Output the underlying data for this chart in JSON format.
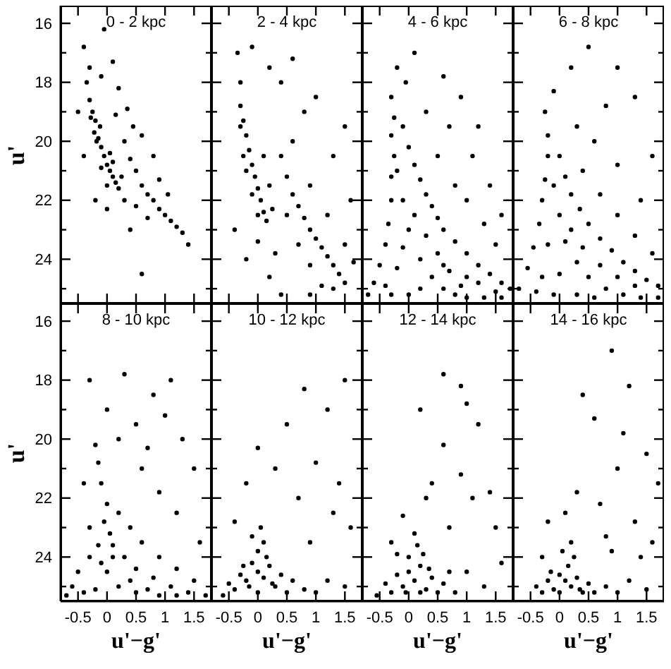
{
  "chart_data": [
    {
      "type": "scatter",
      "title": "0 - 2 kpc",
      "ylabel": "u'",
      "tick_labels": "y",
      "marker": "circle",
      "xlim": [
        -0.8,
        1.8
      ],
      "ylim": [
        25.5,
        15.4
      ],
      "xticks": [
        -0.5,
        0,
        0.5,
        1,
        1.5
      ],
      "yticks": [
        16,
        {
          "value": 17,
          "label": null
        },
        18,
        {
          "value": 19,
          "label": null
        },
        20,
        {
          "value": 21,
          "label": null
        },
        22,
        {
          "value": 23,
          "label": null
        },
        24,
        {
          "value": 25,
          "label": null
        }
      ],
      "series": [
        {
          "color": "#000000",
          "x": [
            -0.3,
            -0.25,
            -0.2,
            -0.22,
            -0.15,
            -0.1,
            -0.18,
            -0.05,
            0,
            0.05,
            0.1,
            0.15,
            0.2,
            -0.1,
            0,
            -0.28,
            -0.12,
            0.05,
            0.1,
            0.25,
            0.3,
            0.4,
            0.5,
            0.6,
            0.7,
            0.8,
            0.9,
            1,
            1.1,
            1.2,
            1.3,
            0.45,
            0.6,
            0.3,
            0.5,
            0.7,
            0.2,
            -0.1,
            -0.3,
            0.1,
            -0.4,
            -0.35,
            0.9,
            1.05,
            -0.2,
            0,
            0.4,
            -0.5,
            0.6,
            0.35,
            0.8,
            1.4,
            -0.05,
            0.15,
            -0.4
          ],
          "values": [
            18.6,
            19,
            19.3,
            19.7,
            19.9,
            20.2,
            20,
            20.5,
            20.8,
            21,
            21.2,
            21.4,
            21.6,
            20.9,
            21.5,
            19.2,
            19.5,
            20.4,
            20.7,
            21.2,
            20,
            20.6,
            21,
            21.5,
            21.8,
            22,
            22.3,
            22.5,
            22.7,
            22.9,
            23.1,
            19.5,
            19.8,
            22,
            22.2,
            22.6,
            18.2,
            17.8,
            17.5,
            17.3,
            16.8,
            18,
            21.3,
            21.8,
            22,
            22.3,
            23,
            19,
            24.5,
            18.9,
            20.5,
            23.5,
            16.2,
            19.1,
            20.5
          ]
        }
      ]
    },
    {
      "type": "scatter",
      "title": "2 - 4 kpc",
      "tick_labels": false,
      "marker": "circle",
      "xlim": [
        -0.8,
        1.8
      ],
      "ylim": [
        25.5,
        15.4
      ],
      "xticks": [
        -0.5,
        0,
        0.5,
        1,
        1.5
      ],
      "yticks": [
        16,
        {
          "value": 17,
          "label": null
        },
        18,
        {
          "value": 19,
          "label": null
        },
        20,
        {
          "value": 21,
          "label": null
        },
        22,
        {
          "value": 23,
          "label": null
        },
        24,
        {
          "value": 25,
          "label": null
        }
      ],
      "series": [
        {
          "color": "#000000",
          "x": [
            -0.35,
            -0.3,
            -0.3,
            -0.25,
            -0.2,
            -0.15,
            -0.1,
            -0.05,
            0,
            0.05,
            0.1,
            0.15,
            -0.2,
            -0.1,
            0,
            -0.25,
            0.2,
            0.25,
            -0.3,
            0.1,
            0.4,
            0.5,
            0.6,
            0.7,
            0.8,
            0.9,
            1,
            1.1,
            1.2,
            1.3,
            1.4,
            1.5,
            0.5,
            0.7,
            0.3,
            0.9,
            1.1,
            0.2,
            -0.2,
            0,
            0.6,
            0.9,
            1.2,
            1.5,
            1.6,
            0.8,
            0.4,
            1,
            1.3,
            0.2,
            -0.1,
            0.6,
            1.5,
            1.65,
            -0.4,
            0.4,
            0.9,
            1.3
          ],
          "values": [
            17,
            18,
            18.8,
            19.3,
            19.8,
            20.3,
            20.8,
            21.2,
            21.6,
            22,
            22.4,
            22.7,
            21,
            21.8,
            22.5,
            20.5,
            21.5,
            22.3,
            19.5,
            20.5,
            20.5,
            21.2,
            21.8,
            22.2,
            22.6,
            23,
            23.3,
            23.6,
            23.9,
            24.2,
            24.5,
            24.8,
            22.5,
            23.5,
            23.8,
            24.2,
            24.9,
            24.6,
            24,
            23.4,
            20,
            21.5,
            22.5,
            23.5,
            22,
            19,
            18,
            18.5,
            20.5,
            17.5,
            16.8,
            17.2,
            19.5,
            24.1,
            23,
            25.2,
            25.2,
            25
          ]
        }
      ]
    },
    {
      "type": "scatter",
      "title": "4 - 6 kpc",
      "tick_labels": false,
      "marker": "circle",
      "xlim": [
        -0.8,
        1.8
      ],
      "ylim": [
        25.5,
        15.4
      ],
      "xticks": [
        -0.5,
        0,
        0.5,
        1,
        1.5
      ],
      "yticks": [
        16,
        {
          "value": 17,
          "label": null
        },
        18,
        {
          "value": 19,
          "label": null
        },
        20,
        {
          "value": 21,
          "label": null
        },
        22,
        {
          "value": 23,
          "label": null
        },
        24,
        {
          "value": 25,
          "label": null
        }
      ],
      "series": [
        {
          "color": "#000000",
          "x": [
            -0.3,
            -0.25,
            -0.3,
            -0.25,
            -0.3,
            -0.3,
            -0.35,
            -0.4,
            -0.5,
            -0.6,
            -0.7,
            -0.1,
            0,
            0.1,
            0.2,
            0.3,
            0.4,
            0.5,
            0.6,
            0.8,
            1,
            1.2,
            1.4,
            1.6,
            1.75,
            -0.2,
            -0.1,
            0,
            0.2,
            0.4,
            0.6,
            0.8,
            1,
            1.3,
            1.6,
            0,
            -0.3,
            -0.2,
            0.1,
            0.3,
            0.5,
            0.7,
            1,
            -0.1,
            0.2,
            0.6,
            0.9,
            1.2,
            1.5,
            -0.4,
            0.5,
            0.8,
            1,
            1.3,
            1.5,
            0.7,
            1.1,
            1.4,
            0.3,
            0.9,
            -0.2,
            0.1,
            0.6,
            1.2,
            1.6,
            -0.05
          ],
          "values": [
            18.5,
            19.2,
            19.8,
            20.5,
            21.2,
            22,
            22.8,
            23.5,
            24.2,
            24.8,
            25.2,
            19.5,
            20.2,
            20.8,
            21.3,
            21.8,
            22.2,
            22.6,
            23,
            23.4,
            23.8,
            24.2,
            24.5,
            24.8,
            25,
            21,
            22,
            23,
            24,
            24.6,
            25,
            25.2,
            25.3,
            25.3,
            25.3,
            25.2,
            25.2,
            24.3,
            22.5,
            23.2,
            23.8,
            24.4,
            24.6,
            23.6,
            25,
            24.2,
            24.9,
            24.8,
            25.1,
            24.9,
            20.5,
            21.5,
            22,
            22.8,
            23.5,
            19.5,
            20.5,
            21.5,
            19,
            18.5,
            17.5,
            17,
            17.8,
            19.5,
            22.5,
            18
          ]
        }
      ]
    },
    {
      "type": "scatter",
      "title": "6 - 8 kpc",
      "tick_labels": false,
      "marker": "circle",
      "xlim": [
        -0.8,
        1.8
      ],
      "ylim": [
        25.5,
        15.4
      ],
      "xticks": [
        -0.5,
        0,
        0.5,
        1,
        1.5
      ],
      "yticks": [
        16,
        {
          "value": 17,
          "label": null
        },
        18,
        {
          "value": 19,
          "label": null
        },
        20,
        {
          "value": 21,
          "label": null
        },
        22,
        {
          "value": 23,
          "label": null
        },
        24,
        {
          "value": 25,
          "label": null
        }
      ],
      "series": [
        {
          "color": "#000000",
          "x": [
            -0.25,
            -0.2,
            -0.2,
            -0.25,
            -0.3,
            -0.35,
            -0.45,
            -0.55,
            -0.7,
            0,
            0.1,
            0.2,
            0.35,
            0.5,
            0.7,
            0.9,
            1.1,
            1.3,
            1.5,
            1.7,
            -0.1,
            0,
            0.1,
            0.3,
            0.5,
            0.8,
            1.1,
            1.4,
            1.7,
            -0.2,
            0,
            -0.1,
            0.3,
            0.6,
            -0.4,
            0.2,
            0.4,
            0.7,
            1,
            1.3,
            -0.3,
            0.4,
            0.7,
            1,
            1.3,
            1.6,
            0.6,
            1,
            1.4,
            0.3,
            0.8,
            1.3,
            -0.1,
            0.2,
            1.6,
            1,
            0.5
          ],
          "values": [
            19,
            19.8,
            20.5,
            21.3,
            22,
            22.8,
            23.6,
            24.3,
            25,
            20.5,
            21.2,
            21.8,
            22.3,
            22.8,
            23.3,
            23.7,
            24.1,
            24.4,
            24.7,
            24.9,
            21.5,
            22.5,
            23.4,
            24.1,
            24.6,
            25,
            25.2,
            25.3,
            25.3,
            23.5,
            24.5,
            25.2,
            25.2,
            25.3,
            25.1,
            23,
            23.6,
            24.2,
            24.6,
            24.9,
            24.6,
            21,
            21.8,
            22.5,
            23.2,
            23.8,
            20,
            20.8,
            22,
            19.5,
            18.8,
            18.5,
            18.3,
            17.5,
            20.5,
            17.5,
            16.8
          ]
        }
      ]
    },
    {
      "type": "scatter",
      "title": "8 - 10 kpc",
      "xlabel": "u'−g'",
      "ylabel": "u'",
      "marker": "circle",
      "xlim": [
        -0.8,
        1.8
      ],
      "ylim": [
        25.5,
        15.4
      ],
      "xticks": [
        -0.5,
        0,
        0.5,
        1,
        1.5
      ],
      "yticks": [
        16,
        {
          "value": 17,
          "label": null
        },
        18,
        {
          "value": 19,
          "label": null
        },
        20,
        {
          "value": 21,
          "label": null
        },
        22,
        {
          "value": 23,
          "label": null
        },
        24,
        {
          "value": 25,
          "label": null
        }
      ],
      "series": [
        {
          "color": "#000000",
          "x": [
            0,
            -0.05,
            0.05,
            -0.15,
            0.1,
            -0.3,
            0.3,
            -0.5,
            0.5,
            -0.6,
            0.8,
            1.1,
            1.4,
            1.7,
            -0.7,
            0,
            0.2,
            -0.2,
            0.5,
            0.9,
            -0.4,
            0.1,
            -0.1,
            0.4,
            0.7,
            1.2,
            -0.1,
            -0.15,
            -0.2,
            0.2,
            0.4,
            0.6,
            0.9,
            1.2,
            1.5,
            -0.3,
            0.6,
            0.9,
            1.2,
            0.5,
            0.8,
            1,
            1.3,
            0.3,
            1.1,
            1.5,
            -0.3,
            -0.4,
            0.2,
            0.7,
            1.6,
            0
          ],
          "values": [
            22.2,
            22.8,
            23.2,
            23.6,
            23.6,
            24,
            24,
            24.5,
            24.4,
            25,
            24.7,
            25,
            25.2,
            25.3,
            25.3,
            24.5,
            25,
            25.1,
            25.2,
            25.3,
            25.2,
            24,
            24.2,
            24.8,
            25.1,
            25.3,
            21.5,
            20.8,
            20.2,
            22.5,
            23,
            23.5,
            24,
            24.4,
            24.8,
            23,
            21,
            21.8,
            22.5,
            19.5,
            18.5,
            19.2,
            20,
            17.8,
            18,
            21,
            18,
            21.5,
            20,
            20.3,
            23.5,
            19
          ]
        }
      ]
    },
    {
      "type": "scatter",
      "title": "10 - 12 kpc",
      "xlabel": "u'−g'",
      "tick_labels": "x",
      "marker": "circle",
      "xlim": [
        -0.8,
        1.8
      ],
      "ylim": [
        25.5,
        15.4
      ],
      "xticks": [
        -0.5,
        0,
        0.5,
        1,
        1.5
      ],
      "yticks": [
        16,
        {
          "value": 17,
          "label": null
        },
        18,
        {
          "value": 19,
          "label": null
        },
        20,
        {
          "value": 21,
          "label": null
        },
        22,
        {
          "value": 23,
          "label": null
        },
        24,
        {
          "value": 25,
          "label": null
        }
      ],
      "series": [
        {
          "color": "#000000",
          "x": [
            0,
            -0.1,
            0.1,
            -0.2,
            0.2,
            -0.3,
            0.3,
            0,
            -0.1,
            0.1,
            -0.4,
            0.4,
            0.5,
            -0.5,
            0,
            0.15,
            -0.15,
            0.25,
            -0.25,
            0.6,
            0.8,
            1,
            -0.6,
            0.05,
            1.2,
            1.5,
            0.9,
            1.3,
            0.7,
            1,
            1.4,
            0.5,
            0.8,
            1.2,
            1.6,
            -0.2,
            -0.4,
            0.3,
            1.5,
            0
          ],
          "values": [
            24.5,
            24.2,
            24.7,
            24.8,
            24.3,
            24.6,
            25,
            23.8,
            23.3,
            23.5,
            25.1,
            24.6,
            25.2,
            24.9,
            25.2,
            24,
            25,
            24.9,
            24.3,
            24.8,
            25.1,
            25.2,
            25.3,
            23,
            24.8,
            25,
            23.5,
            22.5,
            22,
            20.8,
            21.5,
            19.5,
            18.3,
            19,
            23,
            21.5,
            22.8,
            21,
            18,
            20.3
          ]
        }
      ]
    },
    {
      "type": "scatter",
      "title": "12 - 14 kpc",
      "xlabel": "u'−g'",
      "tick_labels": "x",
      "marker": "circle",
      "xlim": [
        -0.8,
        1.8
      ],
      "ylim": [
        25.5,
        15.4
      ],
      "xticks": [
        -0.5,
        0,
        0.5,
        1,
        1.5
      ],
      "yticks": [
        16,
        {
          "value": 17,
          "label": null
        },
        18,
        {
          "value": 19,
          "label": null
        },
        20,
        {
          "value": 21,
          "label": null
        },
        22,
        {
          "value": 23,
          "label": null
        },
        24,
        {
          "value": 25,
          "label": null
        }
      ],
      "series": [
        {
          "color": "#000000",
          "x": [
            0.1,
            0,
            0.2,
            -0.1,
            0.3,
            0,
            0.15,
            -0.2,
            0.4,
            -0.3,
            0.5,
            0.2,
            -0.05,
            0.25,
            -0.4,
            0.6,
            0.8,
            -0.55,
            0.1,
            0.35,
            1,
            1.3,
            0.7,
            1.1,
            0.9,
            0.6,
            1.2,
            0.9,
            0.6,
            1.4,
            0.3,
            -0.3,
            1.6,
            0.2,
            1,
            0.4,
            1.5,
            -0.1,
            0.7,
            -0.2
          ],
          "values": [
            24.8,
            24.5,
            24.3,
            25,
            25.1,
            24,
            23.6,
            24.6,
            24.7,
            25.2,
            25.2,
            25.2,
            25.2,
            23.9,
            24.9,
            24.9,
            25.2,
            25.3,
            23.2,
            24.4,
            24.5,
            25,
            23,
            22,
            21.2,
            20.2,
            19.5,
            18.2,
            17.8,
            21.8,
            22,
            23.5,
            24.2,
            19,
            18.8,
            21.5,
            23,
            22.6,
            24.5,
            23.9
          ]
        }
      ]
    },
    {
      "type": "scatter",
      "title": "14 - 16 kpc",
      "xlabel": "u'−g'",
      "tick_labels": "x",
      "marker": "circle",
      "xlim": [
        -0.8,
        1.8
      ],
      "ylim": [
        25.5,
        15.4
      ],
      "xticks": [
        -0.5,
        0,
        0.5,
        1,
        1.5
      ],
      "yticks": [
        16,
        {
          "value": 17,
          "label": null
        },
        18,
        {
          "value": 19,
          "label": null
        },
        20,
        {
          "value": 21,
          "label": null
        },
        22,
        {
          "value": 23,
          "label": null
        },
        24,
        {
          "value": 25,
          "label": null
        }
      ],
      "series": [
        {
          "color": "#000000",
          "x": [
            0.1,
            0,
            0.2,
            -0.1,
            0.3,
            0.15,
            -0.2,
            0.4,
            0,
            -0.3,
            0.5,
            0.05,
            0.25,
            -0.15,
            0.6,
            0.8,
            1,
            0.2,
            -0.4,
            0.35,
            1.2,
            1.5,
            0.9,
            1.3,
            0.7,
            1,
            1.5,
            0.6,
            1.2,
            0.9,
            1.6,
            0.3,
            -0.2,
            1.1,
            0.4,
            -0.3,
            0.8,
            1.4,
            0.1,
            1.7
          ],
          "values": [
            24.8,
            24.6,
            25,
            25.1,
            24.7,
            24.3,
            24.8,
            25.2,
            25.2,
            25.2,
            24.9,
            23.8,
            24,
            24.5,
            25.2,
            25,
            25.2,
            23.5,
            25,
            25.1,
            24.8,
            25.1,
            23.8,
            22.8,
            22.2,
            21,
            20.5,
            19.3,
            18.2,
            17,
            23.5,
            21.8,
            22.8,
            19.8,
            18.5,
            24,
            23.3,
            24,
            22.5,
            21.5
          ]
        }
      ]
    }
  ]
}
